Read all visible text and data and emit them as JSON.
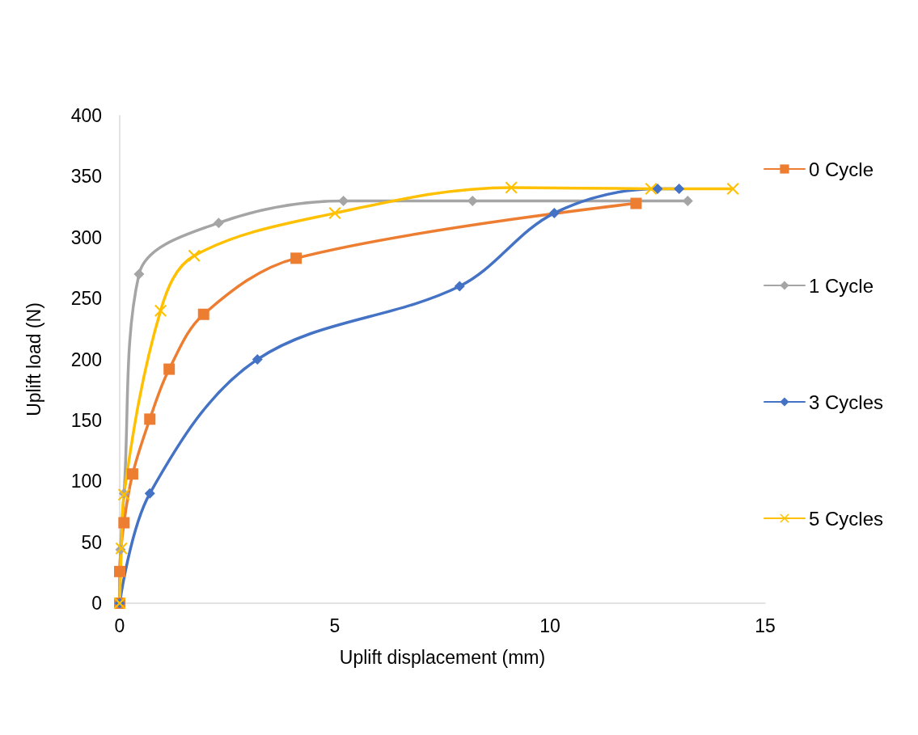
{
  "chart_data": {
    "type": "line",
    "xlabel": "Uplift displacement (mm)",
    "ylabel": "Uplift load (N)",
    "xlim": [
      0,
      15
    ],
    "xticks": [
      0,
      5,
      10,
      15
    ],
    "ylim": [
      0,
      400
    ],
    "yticks": [
      0,
      50,
      100,
      150,
      200,
      250,
      300,
      350,
      400
    ],
    "grid": false,
    "legend": "right",
    "line_style": "solid",
    "series": [
      {
        "name": "0 Cycle",
        "color": "#ed7d31",
        "marker": "square",
        "x": [
          0,
          0,
          0.1,
          0.3,
          0.7,
          1.15,
          1.95,
          4.1,
          12.0
        ],
        "values": [
          0,
          26,
          66,
          106,
          151,
          192,
          237,
          283,
          328
        ]
      },
      {
        "name": "1 Cycle",
        "color": "#a5a5a5",
        "marker": "diamond",
        "x": [
          0,
          0.02,
          0.1,
          0.45,
          2.3,
          5.2,
          8.2,
          13.2
        ],
        "values": [
          0,
          44,
          90,
          270,
          312,
          330,
          330,
          330
        ]
      },
      {
        "name": "3 Cycles",
        "color": "#4472c4",
        "marker": "diamond",
        "x": [
          0,
          0.7,
          3.2,
          7.9,
          10.1,
          12.5,
          13.0
        ],
        "values": [
          0,
          90,
          200,
          260,
          320,
          340,
          340
        ]
      },
      {
        "name": "5 Cycles",
        "color": "#ffc000",
        "marker": "cross",
        "x": [
          0,
          0.04,
          0.1,
          0.95,
          1.73,
          5.0,
          9.1,
          12.35,
          14.25
        ],
        "values": [
          0,
          45,
          89,
          240,
          285,
          320,
          341,
          340,
          340
        ]
      }
    ]
  }
}
